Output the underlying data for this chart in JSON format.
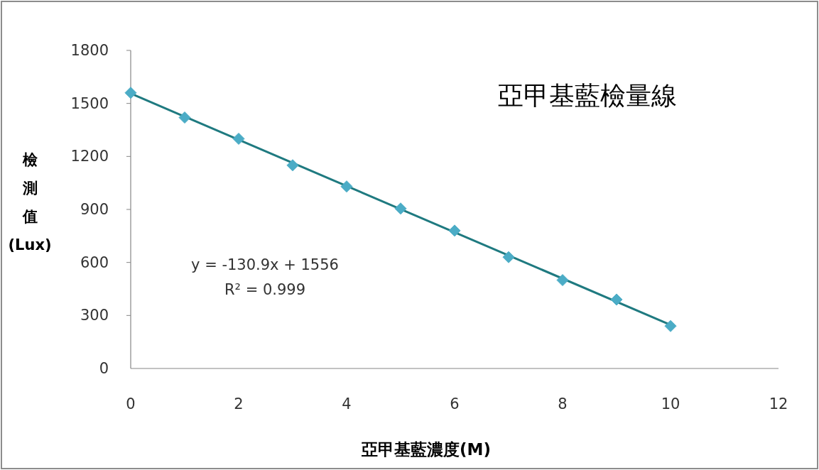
{
  "chart_data": {
    "type": "scatter",
    "title": "亞甲基藍檢量線",
    "xlabel": "亞甲基藍濃度(M)",
    "ylabel": "檢測值(Lux)",
    "annotations": [
      "y = -130.9x + 1556",
      "R² = 0.999"
    ],
    "x": [
      0,
      1,
      2,
      3,
      4,
      5,
      6,
      7,
      8,
      9,
      10
    ],
    "series": [
      {
        "color": "#4bacc6",
        "marker": "diamond",
        "values": [
          1560,
          1420,
          1300,
          1150,
          1030,
          905,
          780,
          630,
          500,
          390,
          240
        ]
      },
      {
        "type": "line",
        "color": "#1f7a80",
        "x": [
          0,
          10
        ],
        "values": [
          1556,
          247
        ],
        "marker": "none"
      }
    ],
    "xlim": [
      0,
      12
    ],
    "ylim": [
      0,
      1800
    ],
    "xticks": [
      0,
      2,
      4,
      6,
      8,
      10,
      12
    ],
    "yticks": [
      0,
      300,
      600,
      900,
      1200,
      1500,
      1800
    ],
    "grid": false
  }
}
